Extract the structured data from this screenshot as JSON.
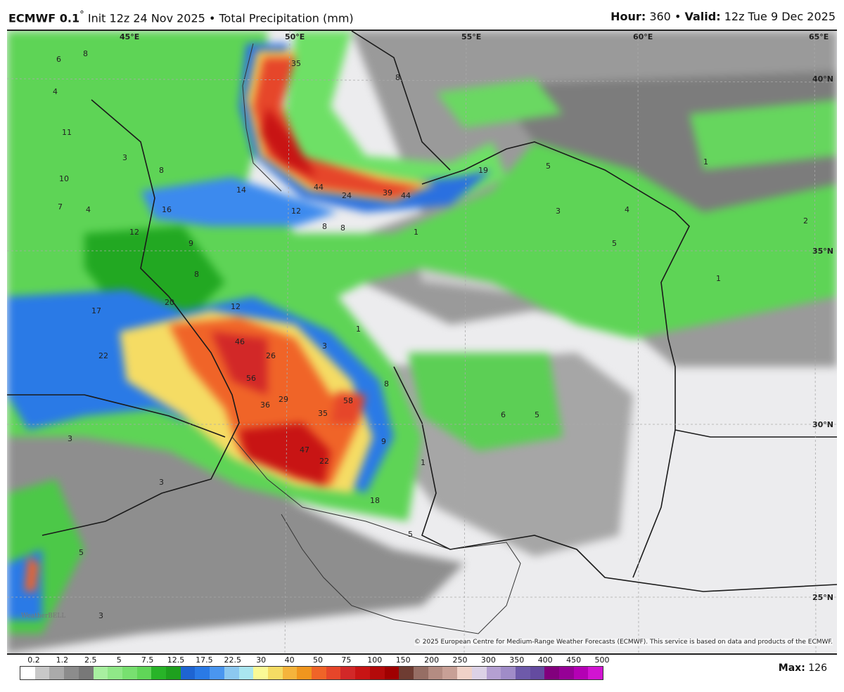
{
  "header": {
    "model": "ECMWF 0.1",
    "degree": "°",
    "init": "Init 12z 24 Nov 2025",
    "separator": "•",
    "field": "Total Precipitation (mm)",
    "hour_label": "Hour:",
    "hour": "360",
    "valid_label": "Valid:",
    "valid": "12z Tue 9 Dec 2025"
  },
  "map": {
    "longitude_labels": [
      "45°E",
      "50°E",
      "55°E",
      "60°E",
      "65°E"
    ],
    "latitude_labels": [
      "40°N",
      "35°N",
      "30°N",
      "25°N"
    ],
    "value_labels": [
      "6",
      "8",
      "4",
      "11",
      "10",
      "7",
      "4",
      "16",
      "12",
      "14",
      "12",
      "8",
      "8",
      "35",
      "44",
      "24",
      "39",
      "44",
      "19",
      "5",
      "1",
      "3",
      "4",
      "5",
      "2",
      "1",
      "9",
      "8",
      "20",
      "12",
      "17",
      "22",
      "46",
      "26",
      "56",
      "29",
      "36",
      "58",
      "35",
      "47",
      "22",
      "9",
      "8",
      "3",
      "1",
      "6",
      "5",
      "1",
      "3",
      "3",
      "5",
      "18",
      "5",
      "3",
      "1",
      "8",
      "3",
      "8"
    ],
    "logo": "WeatherBELL",
    "copyright": "© 2025 European Centre for Medium-Range Weather Forecasts (ECMWF). This service is based on data and products of the ECMWF."
  },
  "legend": {
    "tick_labels": [
      "0.2",
      "1.2",
      "2.5",
      "5",
      "7.5",
      "12.5",
      "17.5",
      "22.5",
      "30",
      "40",
      "50",
      "75",
      "100",
      "150",
      "200",
      "250",
      "300",
      "350",
      "400",
      "450",
      "500"
    ],
    "colors": [
      "#ffffff",
      "#c8c8c8",
      "#aaaaaa",
      "#8c8c8c",
      "#787878",
      "#a8f0a0",
      "#90e888",
      "#78e070",
      "#60d658",
      "#28b428",
      "#1ea01e",
      "#1e64d2",
      "#2a7ae6",
      "#4a96f0",
      "#8cc8f0",
      "#aae6f0",
      "#fafa96",
      "#f5dc64",
      "#f5b43c",
      "#f0961e",
      "#f06428",
      "#e6462a",
      "#d22828",
      "#c81414",
      "#b40a0a",
      "#a00000",
      "#6e3c32",
      "#966e64",
      "#b48c82",
      "#c8a096",
      "#f0d2c8",
      "#dcd2e6",
      "#b4a0d2",
      "#a08cc8",
      "#6e5aaa",
      "#644ba0",
      "#82007d",
      "#960096",
      "#b400b4",
      "#d214d2"
    ],
    "max_label": "Max:",
    "max_value": "126"
  }
}
